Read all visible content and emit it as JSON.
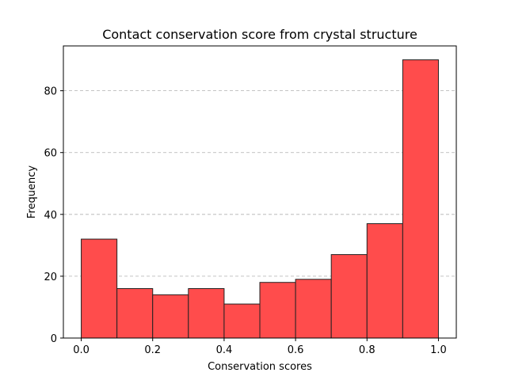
{
  "chart_data": {
    "type": "bar",
    "title": "Contact conservation score from crystal structure",
    "xlabel": "Conservation scores",
    "ylabel": "Frequency",
    "bin_edges": [
      0.0,
      0.1,
      0.2,
      0.3,
      0.4,
      0.5,
      0.6,
      0.7,
      0.8,
      0.9,
      1.0
    ],
    "values": [
      32,
      16,
      14,
      16,
      11,
      18,
      19,
      27,
      37,
      90
    ],
    "xlim": [
      -0.05,
      1.05
    ],
    "ylim": [
      0,
      94.5
    ],
    "xticks": [
      0.0,
      0.2,
      0.4,
      0.6,
      0.8,
      1.0
    ],
    "xtick_labels": [
      "0.0",
      "0.2",
      "0.4",
      "0.6",
      "0.8",
      "1.0"
    ],
    "yticks": [
      0,
      20,
      40,
      60,
      80
    ],
    "ytick_labels": [
      "0",
      "20",
      "40",
      "60",
      "80"
    ],
    "grid": "y-dashed",
    "bar_color": "#ff4c4c",
    "edge_color": "#222222"
  }
}
